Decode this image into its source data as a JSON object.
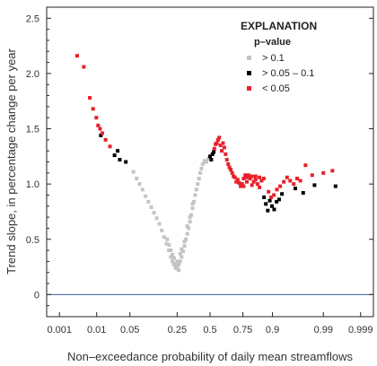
{
  "chart_data": {
    "type": "scatter",
    "title": "",
    "xlabel": "Non–exceedance probability of daily mean streamflows",
    "ylabel": "Trend slope, in percentage change per year",
    "x_scale": "normal probability",
    "x_ticks": [
      0.001,
      0.01,
      0.05,
      0.25,
      0.5,
      0.75,
      0.9,
      0.99,
      0.999
    ],
    "x_tick_labels": [
      "0.001",
      "0.01",
      "0.05",
      "0.25",
      "0.5",
      "0.75",
      "0.9",
      "0.99",
      "0.999"
    ],
    "xlim": [
      0.0004,
      0.9996
    ],
    "ylim": [
      -0.2,
      2.6
    ],
    "y_ticks": [
      0,
      0.5,
      1.0,
      1.5,
      2.0,
      2.5
    ],
    "y_tick_labels": [
      "0",
      "0.5",
      "1.0",
      "1.5",
      "2.0",
      "2.5"
    ],
    "reference_line": {
      "y": 0,
      "color": "#3a5fa8"
    },
    "grid": false,
    "legend": {
      "title": "EXPLANATION",
      "subtitle": "p–value",
      "position": "top-right",
      "items": [
        {
          "label": "> 0.1",
          "color": "#c4c4c4"
        },
        {
          "label": "> 0.05 – 0.1",
          "color": "#000000"
        },
        {
          "label": "< 0.05",
          "color": "#e8202a"
        }
      ]
    },
    "series": [
      {
        "name": "> 0.1",
        "color": "#c4c4c4",
        "points": [
          [
            0.058,
            1.11
          ],
          [
            0.066,
            1.05
          ],
          [
            0.074,
            1.0
          ],
          [
            0.083,
            0.95
          ],
          [
            0.093,
            0.89
          ],
          [
            0.103,
            0.84
          ],
          [
            0.114,
            0.79
          ],
          [
            0.125,
            0.74
          ],
          [
            0.137,
            0.69
          ],
          [
            0.149,
            0.64
          ],
          [
            0.161,
            0.58
          ],
          [
            0.173,
            0.52
          ],
          [
            0.186,
            0.46
          ],
          [
            0.199,
            0.4
          ],
          [
            0.21,
            0.34
          ],
          [
            0.22,
            0.3
          ],
          [
            0.23,
            0.27
          ],
          [
            0.24,
            0.24
          ],
          [
            0.25,
            0.25
          ],
          [
            0.26,
            0.27
          ],
          [
            0.27,
            0.3
          ],
          [
            0.28,
            0.34
          ],
          [
            0.29,
            0.39
          ],
          [
            0.3,
            0.44
          ],
          [
            0.31,
            0.5
          ],
          [
            0.32,
            0.55
          ],
          [
            0.33,
            0.6
          ],
          [
            0.34,
            0.66
          ],
          [
            0.35,
            0.72
          ],
          [
            0.36,
            0.78
          ],
          [
            0.37,
            0.84
          ],
          [
            0.38,
            0.9
          ],
          [
            0.39,
            0.95
          ],
          [
            0.4,
            1.0
          ],
          [
            0.41,
            1.05
          ],
          [
            0.42,
            1.1
          ],
          [
            0.43,
            1.14
          ],
          [
            0.44,
            1.18
          ],
          [
            0.455,
            1.21
          ],
          [
            0.47,
            1.2
          ],
          [
            0.485,
            1.23
          ],
          [
            0.21,
            0.4
          ],
          [
            0.23,
            0.33
          ],
          [
            0.25,
            0.3
          ],
          [
            0.27,
            0.37
          ],
          [
            0.24,
            0.28
          ],
          [
            0.22,
            0.36
          ],
          [
            0.26,
            0.22
          ],
          [
            0.28,
            0.41
          ],
          [
            0.2,
            0.45
          ],
          [
            0.19,
            0.5
          ],
          [
            0.3,
            0.48
          ],
          [
            0.32,
            0.62
          ],
          [
            0.34,
            0.7
          ],
          [
            0.36,
            0.82
          ]
        ]
      },
      {
        "name": "> 0.05 – 0.1",
        "color": "#000000",
        "points": [
          [
            0.0125,
            1.44
          ],
          [
            0.025,
            1.26
          ],
          [
            0.029,
            1.3
          ],
          [
            0.032,
            1.22
          ],
          [
            0.042,
            1.2
          ],
          [
            0.5,
            1.25
          ],
          [
            0.51,
            1.22
          ],
          [
            0.52,
            1.27
          ],
          [
            0.53,
            1.29
          ],
          [
            0.866,
            0.88
          ],
          [
            0.874,
            0.82
          ],
          [
            0.882,
            0.76
          ],
          [
            0.89,
            0.85
          ],
          [
            0.898,
            0.8
          ],
          [
            0.906,
            0.77
          ],
          [
            0.914,
            0.84
          ],
          [
            0.922,
            0.86
          ],
          [
            0.93,
            0.91
          ],
          [
            0.96,
            0.96
          ],
          [
            0.972,
            0.92
          ],
          [
            0.984,
            0.99
          ],
          [
            0.995,
            0.98
          ]
        ]
      },
      {
        "name": "< 0.05",
        "color": "#e8202a",
        "points": [
          [
            0.0032,
            2.16
          ],
          [
            0.0048,
            2.06
          ],
          [
            0.0068,
            1.78
          ],
          [
            0.0082,
            1.68
          ],
          [
            0.0098,
            1.6
          ],
          [
            0.0108,
            1.53
          ],
          [
            0.012,
            1.5
          ],
          [
            0.0135,
            1.46
          ],
          [
            0.016,
            1.4
          ],
          [
            0.02,
            1.34
          ],
          [
            0.535,
            1.32
          ],
          [
            0.545,
            1.36
          ],
          [
            0.555,
            1.37
          ],
          [
            0.565,
            1.4
          ],
          [
            0.575,
            1.42
          ],
          [
            0.585,
            1.35
          ],
          [
            0.595,
            1.3
          ],
          [
            0.605,
            1.37
          ],
          [
            0.615,
            1.33
          ],
          [
            0.625,
            1.27
          ],
          [
            0.635,
            1.22
          ],
          [
            0.645,
            1.18
          ],
          [
            0.655,
            1.15
          ],
          [
            0.665,
            1.13
          ],
          [
            0.675,
            1.1
          ],
          [
            0.685,
            1.07
          ],
          [
            0.695,
            1.06
          ],
          [
            0.705,
            1.02
          ],
          [
            0.715,
            1.04
          ],
          [
            0.725,
            1.01
          ],
          [
            0.735,
            0.98
          ],
          [
            0.745,
            1.0
          ],
          [
            0.755,
            1.05
          ],
          [
            0.765,
            1.08
          ],
          [
            0.775,
            1.06
          ],
          [
            0.785,
            1.08
          ],
          [
            0.795,
            1.05
          ],
          [
            0.805,
            1.07
          ],
          [
            0.815,
            1.02
          ],
          [
            0.825,
            1.04
          ],
          [
            0.835,
            1.0
          ],
          [
            0.845,
            1.06
          ],
          [
            0.855,
            1.03
          ],
          [
            0.865,
            1.05
          ],
          [
            0.885,
            0.93
          ],
          [
            0.895,
            0.88
          ],
          [
            0.905,
            0.9
          ],
          [
            0.915,
            0.95
          ],
          [
            0.925,
            0.98
          ],
          [
            0.935,
            1.02
          ],
          [
            0.943,
            1.06
          ],
          [
            0.95,
            1.03
          ],
          [
            0.957,
            1.0
          ],
          [
            0.963,
            1.05
          ],
          [
            0.968,
            1.03
          ],
          [
            0.975,
            1.17
          ],
          [
            0.982,
            1.08
          ],
          [
            0.99,
            1.1
          ],
          [
            0.994,
            1.12
          ],
          [
            0.755,
            0.98
          ],
          [
            0.775,
            1.02
          ],
          [
            0.805,
            0.99
          ],
          [
            0.825,
            1.07
          ],
          [
            0.845,
            0.97
          ]
        ]
      }
    ]
  }
}
